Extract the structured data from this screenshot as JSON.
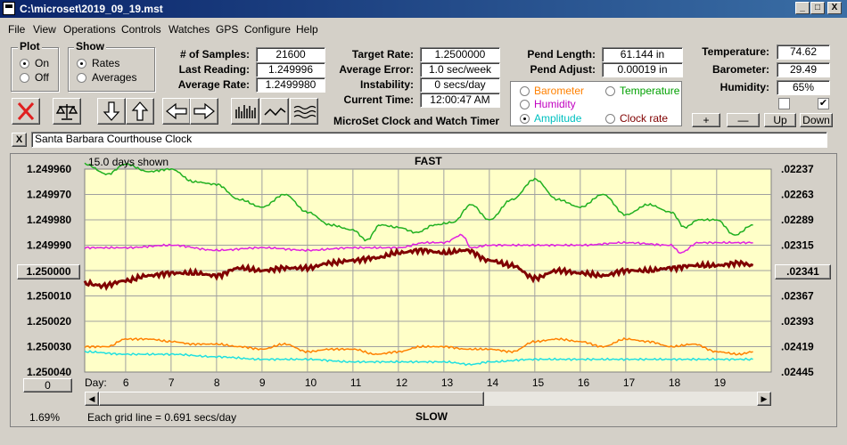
{
  "window": {
    "title": "C:\\microset\\2019_09_19.mst",
    "min": "_",
    "max": "□",
    "close": "X"
  },
  "menu": [
    "File",
    "View",
    "Operations",
    "Controls",
    "Watches",
    "GPS",
    "Configure",
    "Help"
  ],
  "plot_group": {
    "title": "Plot",
    "options": [
      "On",
      "Off"
    ],
    "selected": "On"
  },
  "show_group": {
    "title": "Show",
    "options": [
      "Rates",
      "Averages"
    ],
    "selected": "Rates"
  },
  "stats": {
    "samples_label": "# of Samples:",
    "samples": "21600",
    "last_label": "Last Reading:",
    "last": "1.249996",
    "avg_label": "Average Rate:",
    "avg": "1.2499980",
    "target_label": "Target Rate:",
    "target": "1.2500000",
    "err_label": "Average Error:",
    "err": "1.0 sec/week",
    "inst_label": "Instability:",
    "inst": "0 secs/day",
    "time_label": "Current Time:",
    "time": "12:00:47 AM",
    "pend_len_label": "Pend Length:",
    "pend_len": "61.144 in",
    "pend_adj_label": "Pend Adjust:",
    "pend_adj": "0.00019 in",
    "temp_label": "Temperature:",
    "temp": "74.62",
    "baro_label": "Barometer:",
    "baro": "29.49",
    "hum_label": "Humidity:",
    "hum": "65%"
  },
  "app_name": "MicroSet Clock and Watch Timer",
  "series_select": {
    "options": [
      {
        "label": "Barometer",
        "color": "#ff8000"
      },
      {
        "label": "Temperature",
        "color": "#00a000"
      },
      {
        "label": "Humidity",
        "color": "#c000c0"
      },
      {
        "label": "Amplitude",
        "color": "#00c0c0"
      },
      {
        "label": "Clock rate",
        "color": "#800000"
      }
    ],
    "selected": "Amplitude"
  },
  "adjust_buttons": [
    "+",
    "—",
    "Up",
    "Down"
  ],
  "checks": {
    "left": "",
    "right": "✔"
  },
  "close_x": "X",
  "clock_name": "Santa Barbara Courthouse Clock",
  "plot": {
    "days_shown": "15.0 days shown",
    "top_label": "FAST",
    "bottom_label": "SLOW",
    "day_label": "Day:",
    "grid_note": "Each grid line = 0.691 secs/day",
    "percent": "1.69%",
    "center_button": "1.250000",
    "right_button": ".02341",
    "zero_button": "0"
  },
  "chart_data": {
    "type": "line",
    "x_label": "Day:",
    "xlim": [
      5.1,
      20.2
    ],
    "x_ticks": [
      6,
      7,
      8,
      9,
      10,
      11,
      12,
      13,
      14,
      15,
      16,
      17,
      18,
      19
    ],
    "left_ticks": [
      "1.249960",
      "1.249970",
      "1.249980",
      "1.249990",
      "1.250000",
      "1.250010",
      "1.250020",
      "1.250030",
      "1.250040"
    ],
    "right_ticks": [
      ".02237",
      ".02263",
      ".02289",
      ".02315",
      ".02341",
      ".02367",
      ".02393",
      ".02419",
      ".02445"
    ],
    "ylim_left": [
      1.24996,
      1.25004
    ],
    "grid": true,
    "series": [
      {
        "color": "#20b020",
        "x": [
          5.1,
          5.6,
          6.0,
          6.5,
          7.0,
          7.5,
          8.0,
          8.5,
          9.0,
          9.5,
          10.0,
          10.5,
          11.0,
          11.3,
          11.6,
          12.0,
          12.4,
          12.8,
          13.2,
          13.6,
          14.0,
          14.5,
          15.0,
          15.5,
          16.0,
          16.5,
          17.0,
          17.5,
          18.0,
          18.3,
          18.6,
          19.0,
          19.4,
          19.8
        ],
        "y": [
          1.249958,
          1.249962,
          1.249958,
          1.249961,
          1.24996,
          1.249965,
          1.249966,
          1.249972,
          1.249975,
          1.24997,
          1.249977,
          1.249982,
          1.249984,
          1.249988,
          1.249982,
          1.249983,
          1.249985,
          1.249982,
          1.249981,
          1.249974,
          1.24998,
          1.249972,
          1.249964,
          1.249972,
          1.249975,
          1.24997,
          1.249978,
          1.249974,
          1.249977,
          1.249983,
          1.24998,
          1.24998,
          1.249986,
          1.249982
        ]
      },
      {
        "color": "#e020e0",
        "x": [
          5.1,
          6.0,
          7.0,
          8.0,
          9.0,
          10.0,
          11.0,
          12.0,
          12.6,
          13.0,
          13.4,
          13.6,
          14.0,
          15.0,
          16.0,
          17.0,
          18.0,
          18.2,
          18.6,
          19.0,
          19.8
        ],
        "y": [
          1.249991,
          1.249991,
          1.24999,
          1.249992,
          1.249991,
          1.249992,
          1.249991,
          1.249991,
          1.249989,
          1.249989,
          1.249986,
          1.249991,
          1.24999,
          1.24999,
          1.24999,
          1.249989,
          1.24999,
          1.249993,
          1.249989,
          1.249989,
          1.249989
        ]
      },
      {
        "color": "#800000",
        "x": [
          5.1,
          5.5,
          6.0,
          6.5,
          7.0,
          7.5,
          8.0,
          8.5,
          9.0,
          9.5,
          10.0,
          10.5,
          11.0,
          11.5,
          12.0,
          12.5,
          13.0,
          13.5,
          14.0,
          14.5,
          15.0,
          15.5,
          16.0,
          16.5,
          17.0,
          17.5,
          18.0,
          18.5,
          19.0,
          19.5,
          19.8
        ],
        "y": [
          1.250005,
          1.250006,
          1.250004,
          1.250002,
          1.250001,
          1.250001,
          1.250002,
          1.249999,
          1.25,
          1.249999,
          1.249999,
          1.249997,
          1.249996,
          1.249995,
          1.249993,
          1.249992,
          1.249993,
          1.249992,
          1.249996,
          1.249998,
          1.250003,
          1.25,
          1.250001,
          1.250002,
          1.25,
          1.25,
          1.249999,
          1.249998,
          1.249998,
          1.249997,
          1.249998
        ]
      },
      {
        "color": "#ff8000",
        "x": [
          5.1,
          5.6,
          6.0,
          6.5,
          7.0,
          7.5,
          8.0,
          8.5,
          9.0,
          9.5,
          10.0,
          10.5,
          11.0,
          11.5,
          12.0,
          12.5,
          13.0,
          13.5,
          14.0,
          14.5,
          15.0,
          15.5,
          16.0,
          16.5,
          17.0,
          17.5,
          18.0,
          18.5,
          19.0,
          19.5,
          19.8
        ],
        "y": [
          1.25003,
          1.25003,
          1.250027,
          1.250027,
          1.250028,
          1.250029,
          1.250029,
          1.25003,
          1.250031,
          1.250029,
          1.250032,
          1.250031,
          1.250031,
          1.250033,
          1.250032,
          1.25003,
          1.25003,
          1.250031,
          1.250031,
          1.250032,
          1.250028,
          1.250027,
          1.250028,
          1.25003,
          1.250027,
          1.250028,
          1.25003,
          1.250029,
          1.250032,
          1.250033,
          1.250032
        ]
      },
      {
        "color": "#20e0e0",
        "x": [
          5.1,
          6.0,
          7.0,
          8.0,
          9.0,
          10.0,
          11.0,
          12.0,
          13.0,
          13.6,
          14.0,
          15.0,
          16.0,
          17.0,
          18.0,
          19.0,
          19.8
        ],
        "y": [
          1.250032,
          1.250033,
          1.250033,
          1.250034,
          1.250035,
          1.250035,
          1.250036,
          1.250036,
          1.250036,
          1.250037,
          1.250036,
          1.250035,
          1.250035,
          1.250035,
          1.250035,
          1.250035,
          1.250035
        ]
      }
    ]
  }
}
